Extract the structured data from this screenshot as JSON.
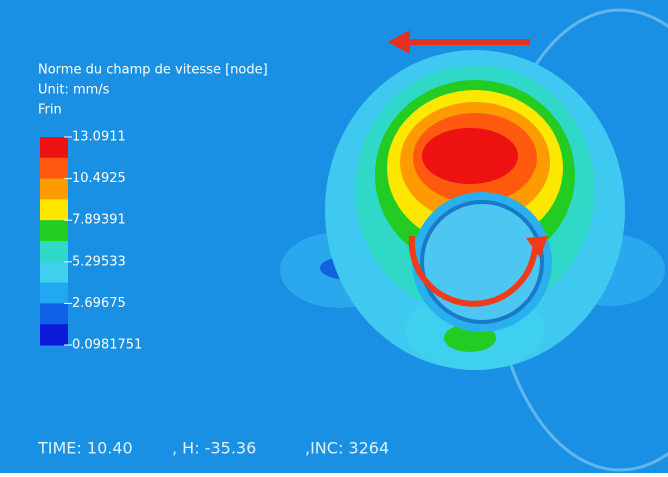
{
  "legend": {
    "title": "Norme du champ de vitesse [node]",
    "unit": "Unit: mm/s",
    "name": "Frin",
    "labels": [
      "13.0911",
      "10.4925",
      "7.89391",
      "5.29533",
      "2.69675",
      "0.0981751"
    ]
  },
  "status": {
    "time": "TIME: 10.40",
    "h": ", H: -35.36",
    "inc": ",INC: 3264"
  }
}
